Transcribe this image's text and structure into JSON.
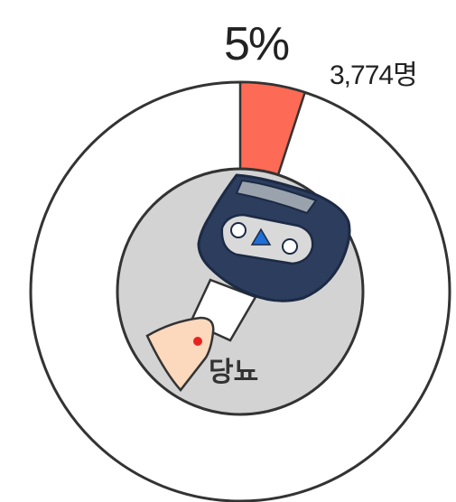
{
  "chart_data": {
    "type": "pie",
    "slices": [
      {
        "value": 5,
        "color": "#fd6a55"
      },
      {
        "value": 95,
        "color": "#ffffff"
      }
    ],
    "percent_label": "5%",
    "count_label": "3,774명",
    "center_label": "당뇨",
    "colors": {
      "highlight": "#fd6a55",
      "inner_circle": "#d3d3d3",
      "meter_body": "#2c3d5e",
      "skin": "#fcd8bd",
      "blood_dot": "#e8231f",
      "outline": "#333333"
    }
  }
}
